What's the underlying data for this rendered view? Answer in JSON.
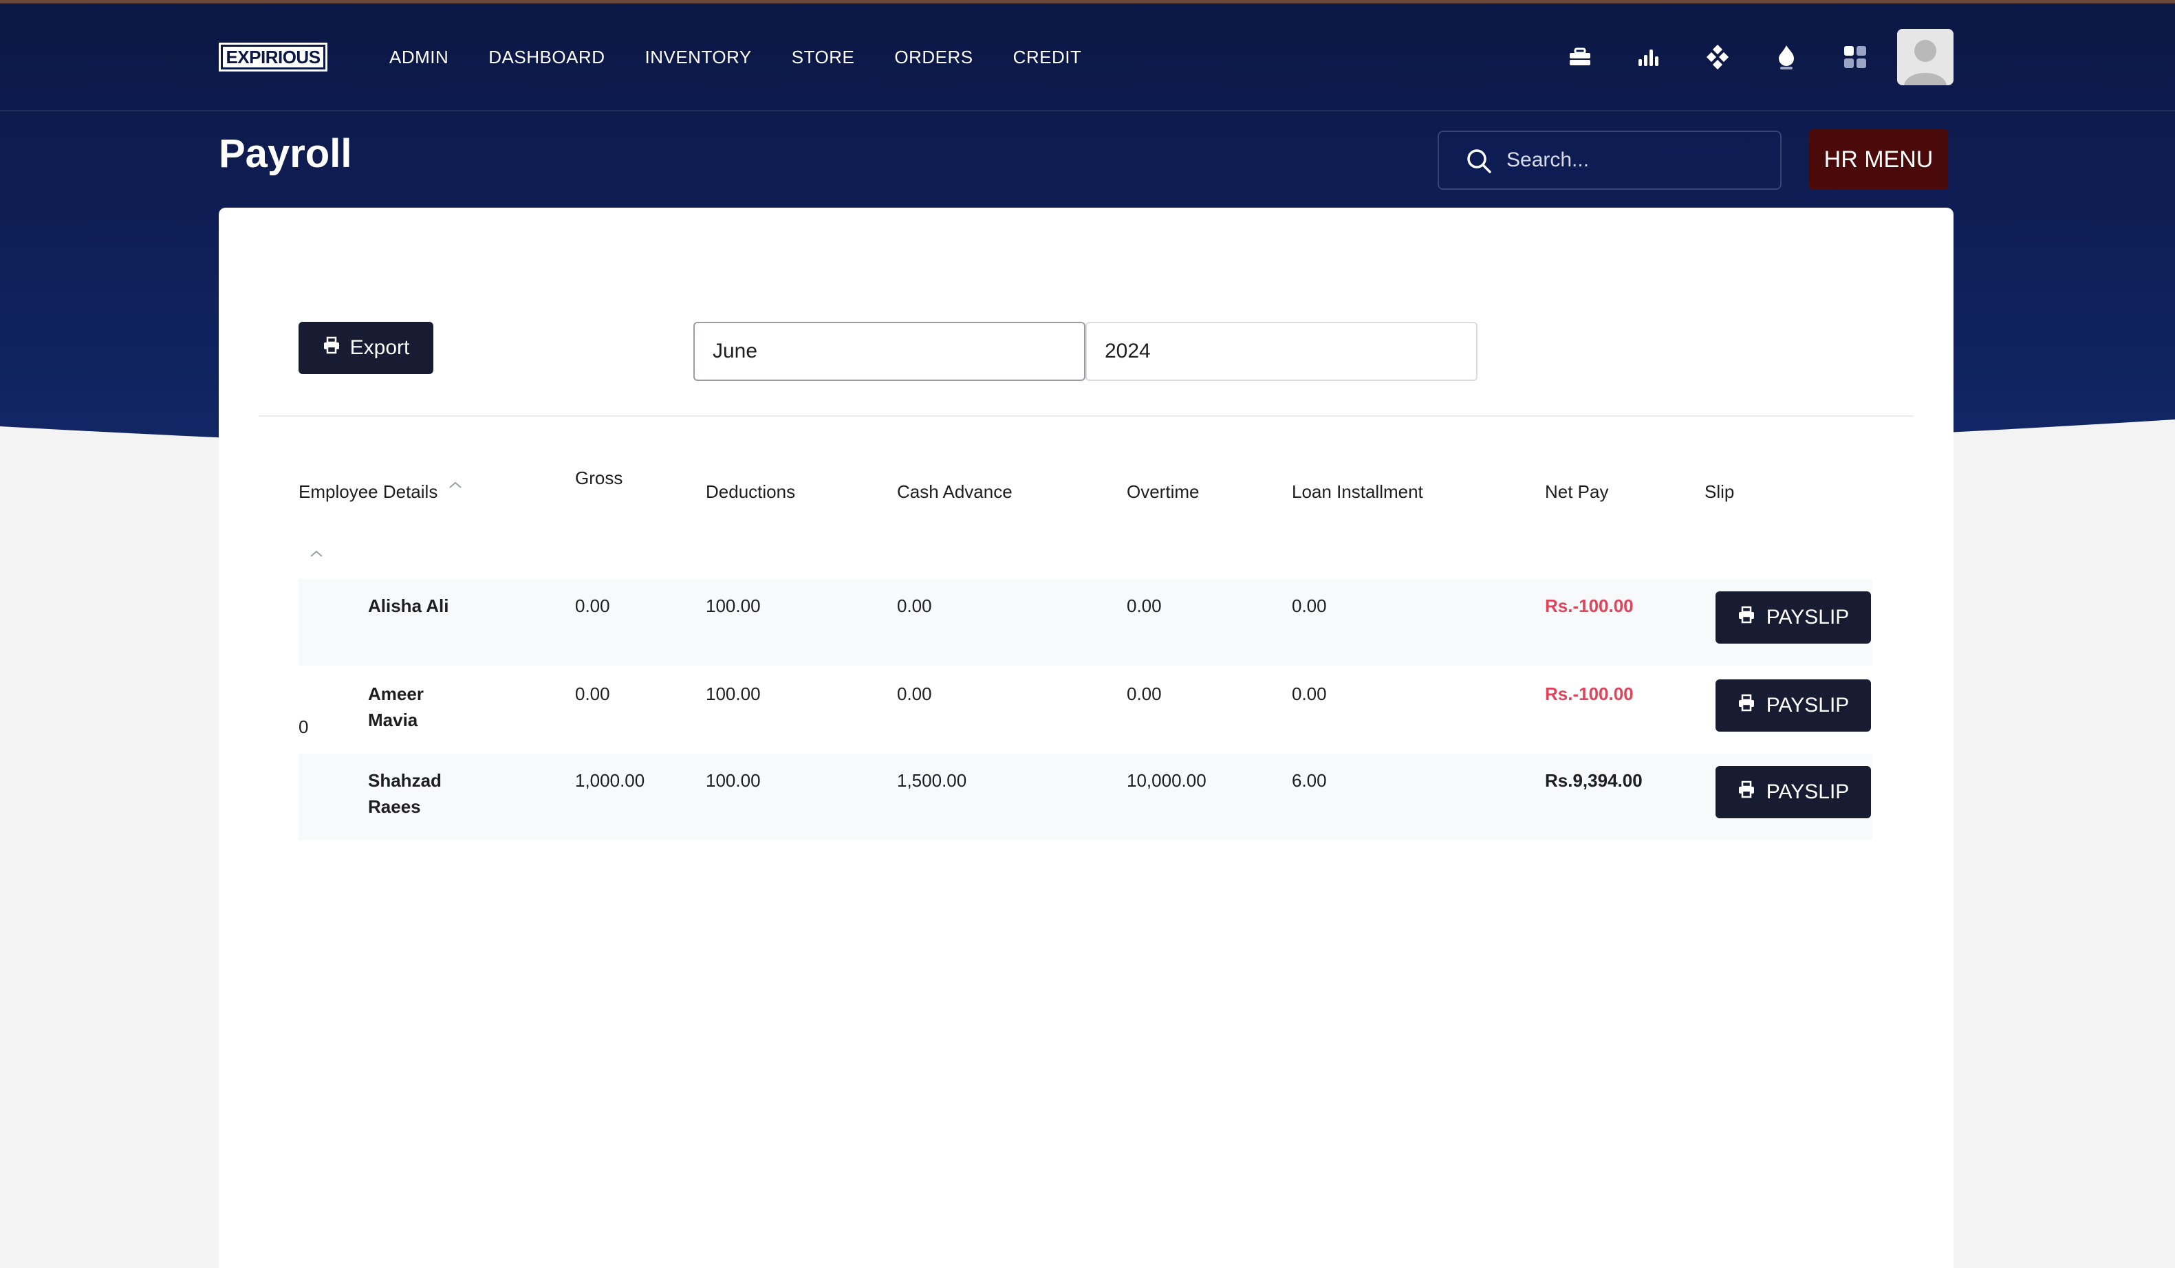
{
  "brand": {
    "logo_text": "EXPIRIOUS"
  },
  "nav": {
    "links": [
      {
        "label": "ADMIN"
      },
      {
        "label": "DASHBOARD"
      },
      {
        "label": "INVENTORY"
      },
      {
        "label": "STORE"
      },
      {
        "label": "ORDERS"
      },
      {
        "label": "CREDIT"
      }
    ],
    "icons": [
      "briefcase-icon",
      "bar-chart-icon",
      "diamond-grid-icon",
      "flame-icon",
      "apps-grid-icon"
    ]
  },
  "header": {
    "title": "Payroll",
    "search_placeholder": "Search...",
    "hr_menu_label": "HR MENU"
  },
  "filters": {
    "export_label": "Export",
    "month_value": "June",
    "year_value": "2024"
  },
  "table": {
    "columns": {
      "employee": "Employee Details",
      "gross": "Gross",
      "deductions": "Deductions",
      "cash_advance": "Cash Advance",
      "overtime": "Overtime",
      "loan": "Loan Installment",
      "net_pay": "Net Pay",
      "slip": "Slip"
    },
    "rows": [
      {
        "name": "Alisha Ali",
        "gross": "0.00",
        "deductions": "100.00",
        "cash_advance": "0.00",
        "overtime": "0.00",
        "loan": "0.00",
        "net_pay": "Rs.-100.00",
        "slip_label": "PAYSLIP"
      },
      {
        "name": "Ameer Mavia",
        "gross": "0.00",
        "deductions": "100.00",
        "cash_advance": "0.00",
        "overtime": "0.00",
        "loan": "0.00",
        "net_pay": "Rs.-100.00",
        "slip_label": "PAYSLIP",
        "prefix": "0"
      },
      {
        "name": "Shahzad Raees",
        "gross": "1,000.00",
        "deductions": "100.00",
        "cash_advance": "1,500.00",
        "overtime": "10,000.00",
        "loan": "6.00",
        "net_pay": "Rs.9,394.00",
        "slip_label": "PAYSLIP"
      }
    ]
  },
  "colors": {
    "header_bg": "#0e1d54",
    "hr_menu_bg": "#4a0a0a",
    "button_dark": "#171c33",
    "negative": "#e0435a"
  }
}
